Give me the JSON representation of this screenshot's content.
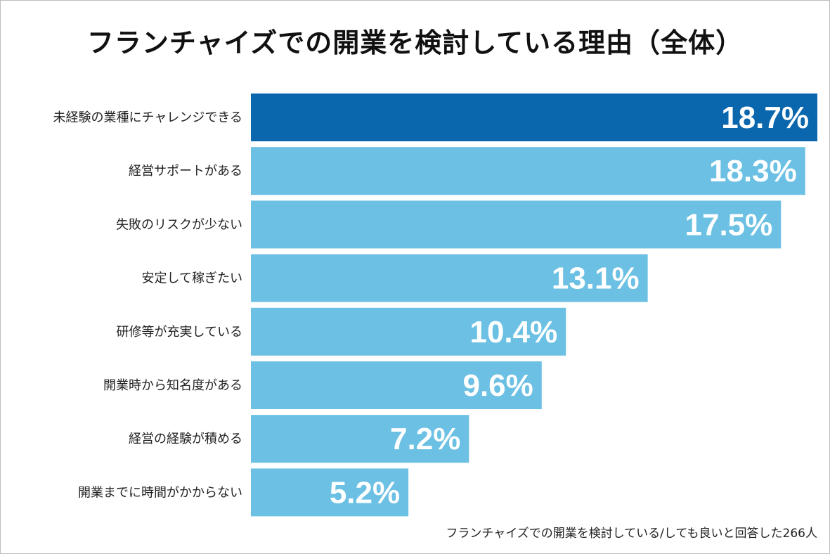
{
  "title": "フランチャイズでの開業を検討している理由（全体）",
  "note": "フランチャイズでの開業を検討している/しても良いと回答した266人",
  "colors": {
    "highlight": "#0a67ad",
    "bar": "#6bc0e3",
    "value_text": "#ffffff"
  },
  "chart_data": {
    "type": "bar",
    "orientation": "horizontal",
    "categories": [
      "未経験の業種にチャレンジできる",
      "経営サポートがある",
      "失敗のリスクが少ない",
      "安定して稼ぎたい",
      "研修等が充実している",
      "開業時から知名度がある",
      "経営の経験が積める",
      "開業までに時間がかからない"
    ],
    "values": [
      18.7,
      18.3,
      17.5,
      13.1,
      10.4,
      9.6,
      7.2,
      5.2
    ],
    "value_labels": [
      "18.7%",
      "18.3%",
      "17.5%",
      "13.1%",
      "10.4%",
      "9.6%",
      "7.2%",
      "5.2%"
    ],
    "unit": "%",
    "highlighted_index": 0,
    "xlim": [
      0,
      18.7
    ],
    "grid": false,
    "legend": "none"
  }
}
